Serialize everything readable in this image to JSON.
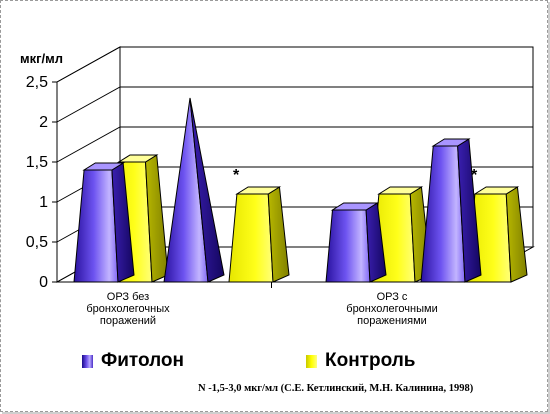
{
  "chart_data": {
    "type": "bar",
    "unit_label": "мкг/мл",
    "yticks": [
      "0",
      "0,5",
      "1",
      "1,5",
      "2",
      "2,5"
    ],
    "ylim": [
      0,
      2.5
    ],
    "categories": [
      {
        "label": "ОРЗ без\nбронхолегочных\nпоражений",
        "bars": [
          {
            "series": "Фитолон",
            "shape": "truncated-pyramid",
            "value": 1.4
          },
          {
            "series": "Контроль",
            "shape": "truncated-pyramid",
            "value": 1.5
          },
          {
            "series": "Фитолон",
            "shape": "pyramid",
            "value": 2.3
          },
          {
            "series": "Контроль",
            "shape": "truncated-pyramid",
            "value": 1.1,
            "annotation": "*"
          }
        ]
      },
      {
        "label": "ОРЗ с\nбронхолегочными\nпоражениями",
        "bars": [
          {
            "series": "Фитолон",
            "shape": "truncated-pyramid",
            "value": 0.9
          },
          {
            "series": "Контроль",
            "shape": "truncated-pyramid",
            "value": 1.1
          },
          {
            "series": "Фитолон",
            "shape": "truncated-pyramid",
            "value": 1.7
          },
          {
            "series": "Контроль",
            "shape": "truncated-pyramid",
            "value": 1.1,
            "annotation": "*"
          }
        ]
      }
    ],
    "legend": [
      {
        "name": "Фитолон",
        "color": "#5a3ee0"
      },
      {
        "name": "Контроль",
        "color": "#ffff00"
      }
    ],
    "grid": true,
    "legend_position": "bottom"
  },
  "footnote": "N -1,5-3,0 мкг/мл (С.Е. Кетлинский, М.Н. Калинина, 1998)"
}
